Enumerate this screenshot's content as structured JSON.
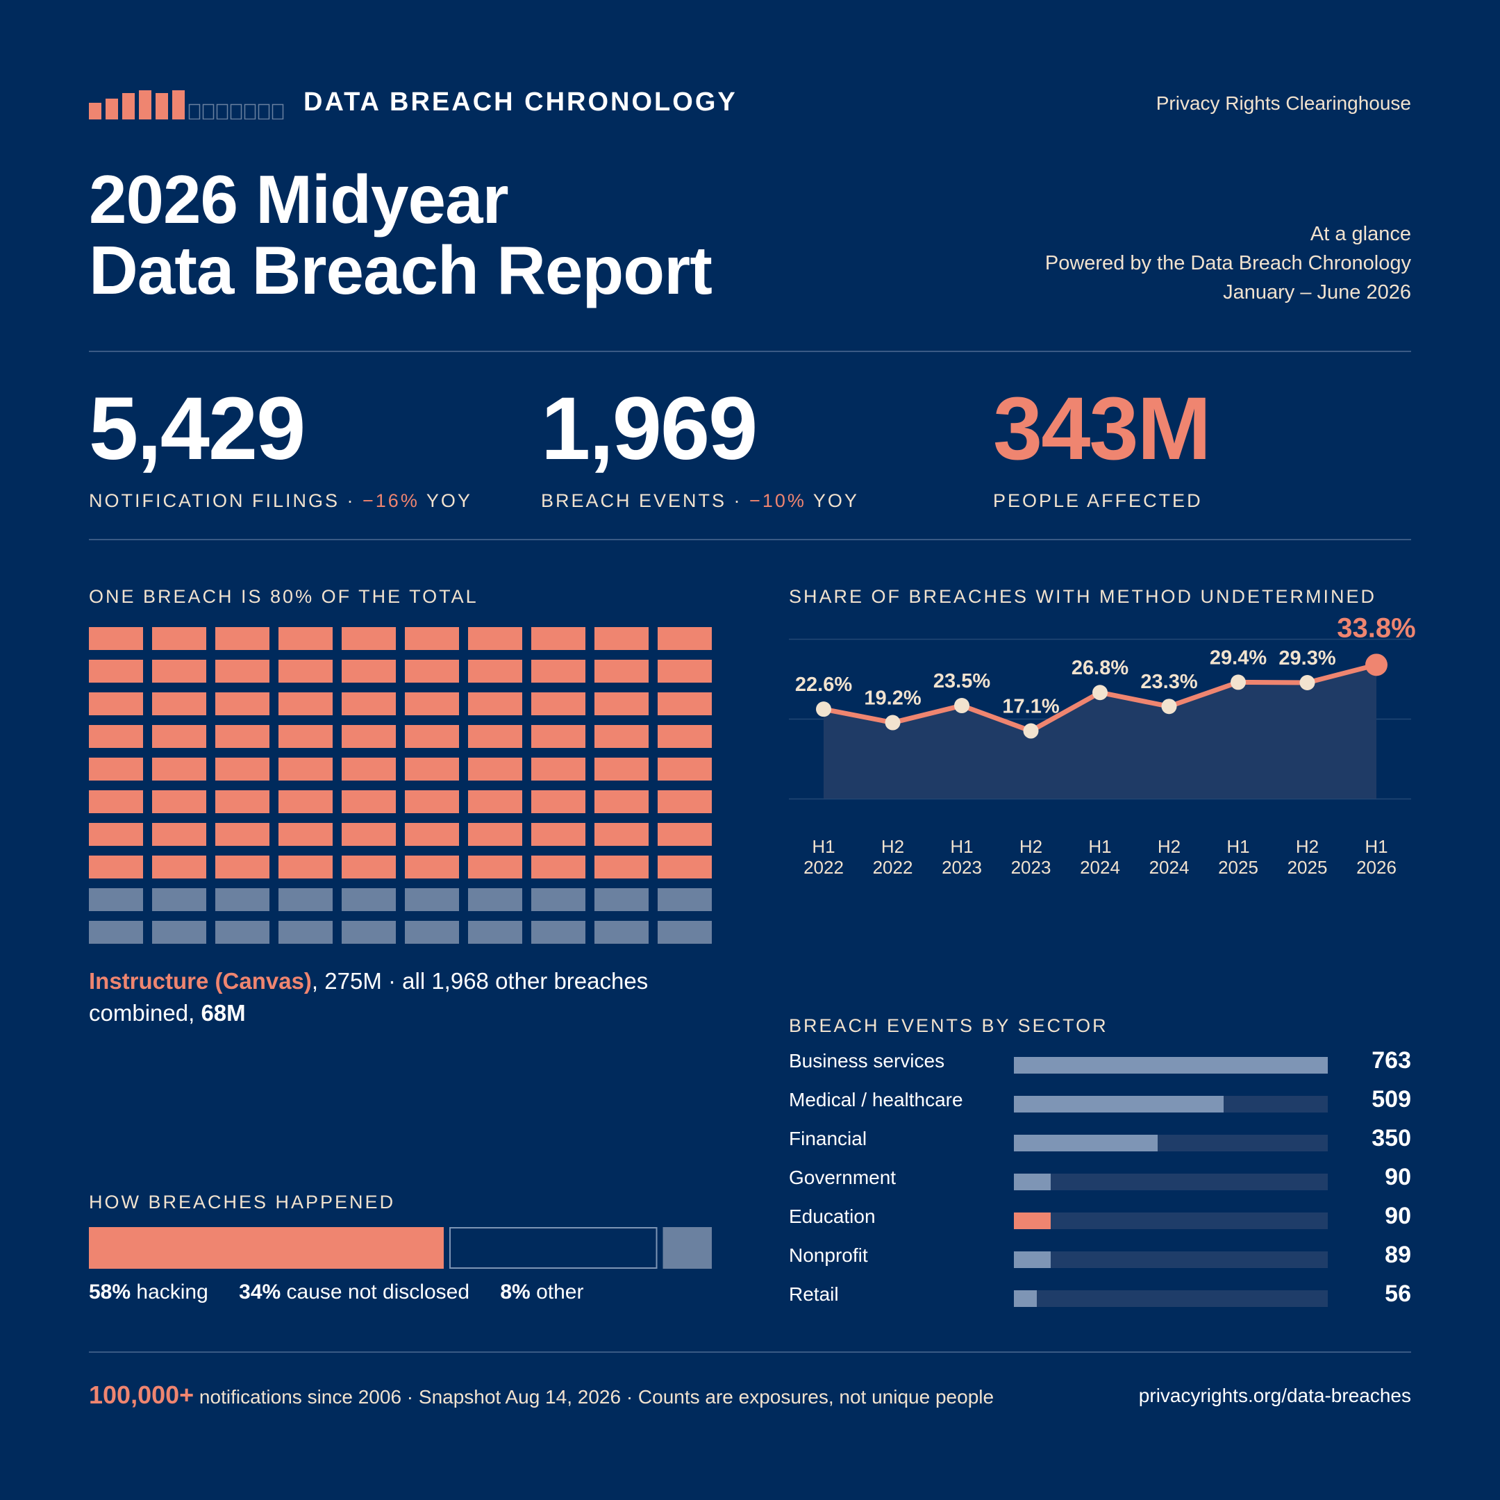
{
  "header": {
    "brand": "DATA BREACH CHRONOLOGY",
    "organization": "Privacy Rights Clearinghouse",
    "title_line1": "2026 Midyear",
    "title_line2": "Data Breach Report",
    "glance_line1": "At a glance",
    "glance_line2": "Powered by the Data Breach Chronology",
    "glance_line3": "January – June 2026"
  },
  "kpis": [
    {
      "value": "5,429",
      "label": "NOTIFICATION FILINGS · ",
      "delta": "−16%",
      "suffix": " YOY"
    },
    {
      "value": "1,969",
      "label": "BREACH EVENTS · ",
      "delta": "−10%",
      "suffix": " YOY"
    },
    {
      "value": "343M",
      "label": "PEOPLE AFFECTED",
      "delta": "",
      "suffix": ""
    }
  ],
  "waffle": {
    "title": "ONE BREACH IS 80% OF THE TOTAL",
    "highlight_share": 80,
    "caption_highlight": "Instructure (Canvas)",
    "caption_rest": ", 275M · all 1,968 other breaches combined, ",
    "caption_bold": "68M"
  },
  "methods": {
    "title": "HOW BREACHES HAPPENED",
    "items": [
      {
        "pct": "58%",
        "label": " hacking",
        "value": 58
      },
      {
        "pct": "34%",
        "label": " cause not disclosed",
        "value": 34
      },
      {
        "pct": "8%",
        "label": " other",
        "value": 8
      }
    ]
  },
  "footer": {
    "highlight": "100,000+",
    "note": " notifications since 2006 · Snapshot Aug 14, 2026 · Counts are exposures, not unique people",
    "url": "privacyrights.org/data-breaches"
  },
  "colors": {
    "background": "#002a5c",
    "accent": "#ef8570",
    "muted": "#6b81a0",
    "cream": "#f2e3cf"
  },
  "chart_data": [
    {
      "type": "area",
      "title": "SHARE OF BREACHES WITH METHOD UNDETERMINED",
      "categories": [
        "H1 2022",
        "H2 2022",
        "H1 2023",
        "H2 2023",
        "H1 2024",
        "H2 2024",
        "H1 2025",
        "H2 2025",
        "H1 2026"
      ],
      "category_lines": [
        [
          "H1",
          "2022"
        ],
        [
          "H2",
          "2022"
        ],
        [
          "H1",
          "2023"
        ],
        [
          "H2",
          "2023"
        ],
        [
          "H1",
          "2024"
        ],
        [
          "H2",
          "2024"
        ],
        [
          "H1",
          "2025"
        ],
        [
          "H2",
          "2025"
        ],
        [
          "H1",
          "2026"
        ]
      ],
      "values": [
        22.6,
        19.2,
        23.5,
        17.1,
        26.8,
        23.3,
        29.4,
        29.3,
        33.8
      ],
      "labels": [
        "22.6%",
        "19.2%",
        "23.5%",
        "17.1%",
        "26.8%",
        "23.3%",
        "29.4%",
        "29.3%",
        "33.8%"
      ],
      "ylim": [
        0,
        40
      ],
      "grid": true
    },
    {
      "type": "bar",
      "title": "BREACH EVENTS BY SECTOR",
      "categories": [
        "Business services",
        "Medical / healthcare",
        "Financial",
        "Government",
        "Education",
        "Nonprofit",
        "Retail"
      ],
      "values": [
        763,
        509,
        350,
        90,
        90,
        89,
        56
      ],
      "highlight": "Education",
      "xlim": [
        0,
        763
      ]
    }
  ]
}
